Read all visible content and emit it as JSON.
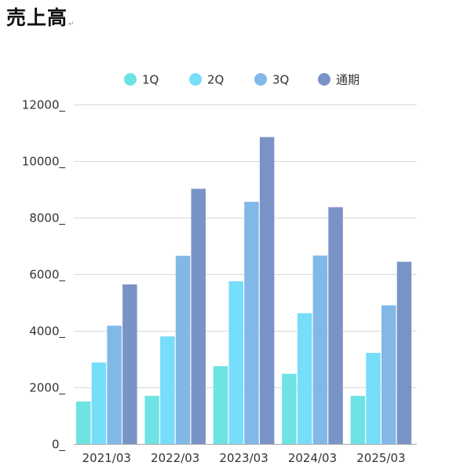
{
  "page": {
    "title": "売上高",
    "title_mark": "↵"
  },
  "chart_data": {
    "type": "bar",
    "title": "",
    "xlabel": "",
    "ylabel": "",
    "categories": [
      "2021/03",
      "2022/03",
      "2023/03",
      "2024/03",
      "2025/03"
    ],
    "series": [
      {
        "name": "1Q",
        "color": "#6ee3e3",
        "values": [
          1500,
          1700,
          2750,
          2480,
          1700
        ]
      },
      {
        "name": "2Q",
        "color": "#76ddfa",
        "values": [
          2880,
          3800,
          5750,
          4620,
          3220
        ]
      },
      {
        "name": "3Q",
        "color": "#81b8e8",
        "values": [
          4180,
          6650,
          8560,
          6660,
          4900
        ]
      },
      {
        "name": "通期",
        "color": "#7a93c6",
        "values": [
          5640,
          9020,
          10850,
          8370,
          6440
        ]
      }
    ],
    "ylim": [
      0,
      12000
    ],
    "yticks": [
      0,
      2000,
      4000,
      6000,
      8000,
      10000,
      12000
    ],
    "ytick_labels": [
      "0_",
      "2000_",
      "4000_",
      "6000_",
      "8000_",
      "10000_",
      "12000_"
    ],
    "grid": true,
    "legend_position": "top-center"
  }
}
